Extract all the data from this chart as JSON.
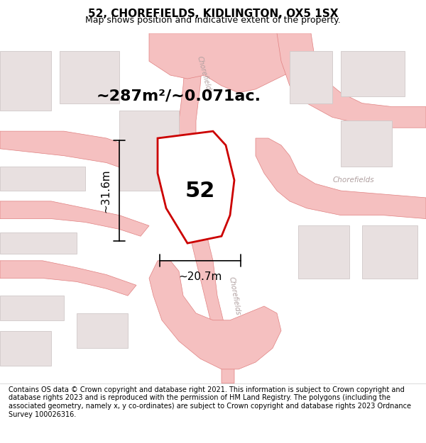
{
  "title": "52, CHOREFIELDS, KIDLINGTON, OX5 1SX",
  "subtitle": "Map shows position and indicative extent of the property.",
  "area_text": "~287m²/~0.071ac.",
  "width_label": "~20.7m",
  "height_label": "~31.6m",
  "number_label": "52",
  "footer": "Contains OS data © Crown copyright and database right 2021. This information is subject to Crown copyright and database rights 2023 and is reproduced with the permission of HM Land Registry. The polygons (including the associated geometry, namely x, y co-ordinates) are subject to Crown copyright and database rights 2023 Ordnance Survey 100026316.",
  "bg_color": "#f8f0f0",
  "map_bg": "#ffffff",
  "plot_color": "#cc0000",
  "road_color": "#f5c0c0",
  "road_stroke": "#e08080",
  "building_color": "#e8e0e0",
  "building_stroke": "#d0c8c8",
  "road_label_color": "#b0a0a0",
  "title_fontsize": 11,
  "subtitle_fontsize": 9,
  "area_fontsize": 16,
  "number_fontsize": 22,
  "dim_fontsize": 11,
  "footer_fontsize": 7
}
